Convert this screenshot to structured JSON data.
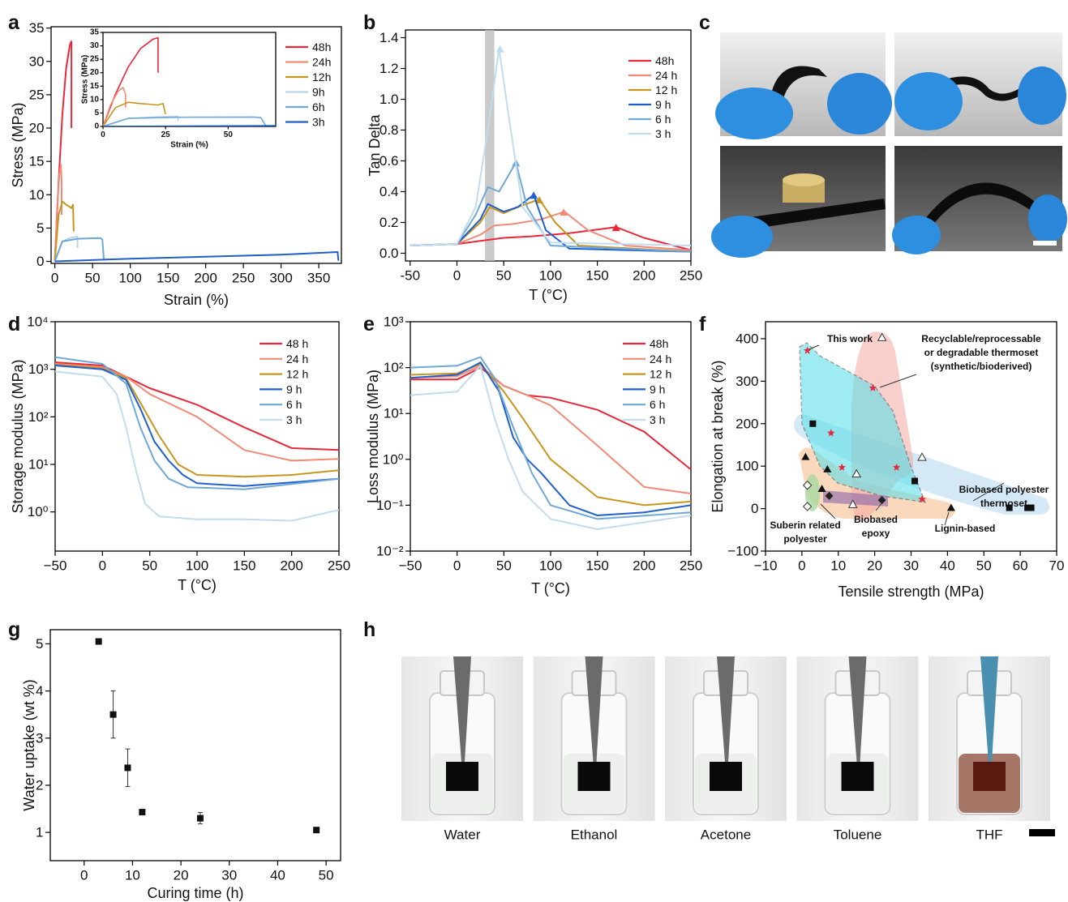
{
  "chart_data": [
    {
      "panel": "a",
      "type": "line",
      "xlabel": "Strain (%)",
      "ylabel": "Stress (MPa)",
      "xlim": [
        -5,
        380
      ],
      "ylim": [
        -0.3,
        35.2
      ],
      "xticks": [
        0,
        50,
        100,
        150,
        200,
        250,
        300,
        350
      ],
      "yticks": [
        0,
        5,
        10,
        15,
        20,
        25,
        30,
        35
      ],
      "legend": "upper right",
      "series": [
        {
          "name": "48h",
          "color": "#e8283a",
          "x": [
            0,
            5,
            10,
            15,
            20,
            22,
            22
          ],
          "values": [
            0,
            12,
            22,
            29,
            32.5,
            33,
            20
          ]
        },
        {
          "name": "24h",
          "color": "#f28a78",
          "x": [
            0,
            3,
            6,
            8,
            9,
            9
          ],
          "values": [
            0,
            8,
            13,
            14.5,
            12,
            7
          ]
        },
        {
          "name": "12h",
          "color": "#c8961e",
          "x": [
            0,
            5,
            10,
            15,
            22,
            24,
            25
          ],
          "values": [
            0,
            7,
            9,
            8.5,
            8,
            8.5,
            4.5
          ]
        },
        {
          "name": "9h",
          "color": "#b9d4e8",
          "x": [
            0,
            10,
            20,
            28,
            30,
            30
          ],
          "values": [
            0,
            3,
            3.5,
            3.7,
            3.7,
            2
          ]
        },
        {
          "name": "6h",
          "color": "#6fa8d6",
          "x": [
            0,
            10,
            30,
            60,
            63,
            65
          ],
          "values": [
            0,
            3,
            3.4,
            3.5,
            3.3,
            0.3
          ]
        },
        {
          "name": "3h",
          "color": "#1f5fc8",
          "x": [
            0,
            100,
            200,
            300,
            375,
            376
          ],
          "values": [
            0,
            0.4,
            0.7,
            1,
            1.4,
            0.1
          ]
        }
      ],
      "inset": {
        "xlabel": "Strain (%)",
        "ylabel": "Stress (MPa)",
        "xlim": [
          0,
          69
        ],
        "ylim": [
          0,
          35
        ],
        "xticks": [
          0,
          25,
          50
        ],
        "yticks": [
          0,
          5,
          10,
          15,
          20,
          25,
          30,
          35
        ]
      }
    },
    {
      "panel": "b",
      "type": "line",
      "xlabel": "T (°C)",
      "ylabel": "Tan Delta",
      "xlim": [
        -55,
        250
      ],
      "ylim": [
        -0.05,
        1.45
      ],
      "xticks": [
        -50,
        0,
        50,
        100,
        150,
        200,
        250
      ],
      "yticks": [
        {
          "value": 0,
          "label": "0.0"
        },
        0.2,
        0.4,
        0.6,
        0.8,
        {
          "value": 1,
          "label": "1.0"
        },
        1.2,
        1.4
      ],
      "legend": "upper right",
      "highlight": [
        30,
        40
      ],
      "series": [
        {
          "name": "48h",
          "color": "#e8283a",
          "x": [
            -50,
            0,
            25,
            50,
            80,
            120,
            170,
            200,
            250
          ],
          "values": [
            0.05,
            0.06,
            0.08,
            0.1,
            0.11,
            0.13,
            0.17,
            0.1,
            0.02
          ],
          "peak": [
            170,
            0.16
          ]
        },
        {
          "name": "24 h",
          "color": "#f28a78",
          "x": [
            -50,
            0,
            25,
            40,
            60,
            90,
            115,
            140,
            180,
            250
          ],
          "values": [
            0.05,
            0.06,
            0.12,
            0.18,
            0.19,
            0.22,
            0.27,
            0.15,
            0.05,
            0.02
          ],
          "peak": [
            114,
            0.26
          ]
        },
        {
          "name": "12 h",
          "color": "#c8961e",
          "x": [
            -50,
            0,
            25,
            35,
            50,
            65,
            88,
            105,
            130,
            250
          ],
          "values": [
            0.05,
            0.06,
            0.2,
            0.3,
            0.26,
            0.3,
            0.35,
            0.2,
            0.05,
            0.01
          ],
          "peak": [
            88,
            0.34
          ]
        },
        {
          "name": "9 h",
          "color": "#1f5fd0",
          "x": [
            -50,
            0,
            25,
            33,
            50,
            65,
            82,
            95,
            120,
            250
          ],
          "values": [
            0.05,
            0.06,
            0.22,
            0.32,
            0.27,
            0.3,
            0.38,
            0.15,
            0.03,
            0.01
          ],
          "peak": [
            82,
            0.37
          ]
        },
        {
          "name": "6 h",
          "color": "#6fa8d6",
          "x": [
            -50,
            0,
            20,
            33,
            45,
            63,
            75,
            100,
            250
          ],
          "values": [
            0.05,
            0.06,
            0.25,
            0.43,
            0.4,
            0.59,
            0.3,
            0.05,
            0.01
          ],
          "peak": [
            63,
            0.58
          ]
        },
        {
          "name": "3 h",
          "color": "#c2dcef",
          "x": [
            -50,
            0,
            20,
            33,
            45,
            55,
            70,
            100,
            250
          ],
          "values": [
            0.05,
            0.06,
            0.3,
            0.8,
            1.33,
            0.9,
            0.3,
            0.07,
            0.05
          ],
          "peak": [
            46,
            1.32
          ]
        }
      ]
    },
    {
      "panel": "d",
      "type": "line",
      "log_y": true,
      "xlabel": "T (°C)",
      "ylabel": "Storage modulus (MPa)",
      "xlim": [
        -50,
        250
      ],
      "ylim": [
        0.15,
        10000
      ],
      "xticks": [
        {
          "value": -50,
          "label": "−50"
        },
        0,
        50,
        100,
        150,
        200,
        250
      ],
      "yticks": [
        {
          "value": 1,
          "label": "10⁰"
        },
        {
          "value": 10,
          "label": "10¹"
        },
        {
          "value": 100,
          "label": "10²"
        },
        {
          "value": 1000,
          "label": "10³"
        },
        {
          "value": 10000,
          "label": "10⁴"
        }
      ],
      "legend": "upper right",
      "series": [
        {
          "name": "48 h",
          "color": "#e8283a",
          "x": [
            -50,
            0,
            25,
            50,
            100,
            150,
            200,
            250
          ],
          "values": [
            1400,
            1200,
            700,
            400,
            180,
            60,
            22,
            20
          ]
        },
        {
          "name": "24 h",
          "color": "#f28a78",
          "x": [
            -50,
            0,
            25,
            50,
            100,
            150,
            200,
            250
          ],
          "values": [
            1300,
            1100,
            700,
            300,
            100,
            20,
            12,
            13
          ]
        },
        {
          "name": "12 h",
          "color": "#c8961e",
          "x": [
            -50,
            0,
            25,
            40,
            60,
            80,
            100,
            150,
            200,
            250
          ],
          "values": [
            1250,
            1050,
            650,
            200,
            40,
            10,
            6,
            5.5,
            6,
            7.5
          ]
        },
        {
          "name": "9 h",
          "color": "#1f5fd0",
          "x": [
            -50,
            0,
            25,
            40,
            55,
            70,
            85,
            100,
            150,
            250
          ],
          "values": [
            1200,
            1000,
            600,
            150,
            30,
            12,
            6,
            4,
            3.5,
            5
          ]
        },
        {
          "name": "6 h",
          "color": "#6fa8d6",
          "x": [
            -50,
            0,
            25,
            40,
            55,
            70,
            90,
            150,
            250
          ],
          "values": [
            1800,
            1300,
            500,
            60,
            12,
            5,
            3.3,
            3,
            5
          ]
        },
        {
          "name": "3 h",
          "color": "#c2dcef",
          "x": [
            -50,
            0,
            15,
            25,
            35,
            45,
            60,
            100,
            150,
            200,
            250
          ],
          "values": [
            900,
            700,
            300,
            60,
            8,
            1.5,
            0.8,
            0.7,
            0.7,
            0.65,
            1.1
          ]
        }
      ]
    },
    {
      "panel": "e",
      "type": "line",
      "log_y": true,
      "xlabel": "T (°C)",
      "ylabel": "Loss modulus (MPa)",
      "xlim": [
        -50,
        250
      ],
      "ylim": [
        0.01,
        1000
      ],
      "xticks": [
        {
          "value": -50,
          "label": "−50"
        },
        0,
        50,
        100,
        150,
        200,
        250
      ],
      "yticks": [
        {
          "value": 0.01,
          "label": "10⁻²"
        },
        {
          "value": 0.1,
          "label": "10⁻¹"
        },
        {
          "value": 1,
          "label": "10⁰"
        },
        {
          "value": 10,
          "label": "10¹"
        },
        {
          "value": 100,
          "label": "10²"
        },
        {
          "value": 1000,
          "label": "10³"
        }
      ],
      "legend": "upper right",
      "series": [
        {
          "name": "48h",
          "color": "#e8283a",
          "x": [
            -50,
            0,
            25,
            50,
            75,
            100,
            150,
            200,
            250
          ],
          "values": [
            55,
            55,
            100,
            40,
            25,
            22,
            12,
            4,
            0.6
          ]
        },
        {
          "name": "24 h",
          "color": "#f28a78",
          "x": [
            -50,
            0,
            25,
            50,
            75,
            100,
            150,
            200,
            250
          ],
          "values": [
            60,
            65,
            110,
            40,
            25,
            15,
            2,
            0.25,
            0.18
          ]
        },
        {
          "name": "12 h",
          "color": "#c8961e",
          "x": [
            -50,
            0,
            25,
            50,
            70,
            80,
            100,
            150,
            200,
            250
          ],
          "values": [
            70,
            75,
            120,
            30,
            8,
            4,
            1,
            0.15,
            0.1,
            0.12
          ]
        },
        {
          "name": "9 h",
          "color": "#1f5fd0",
          "x": [
            -50,
            0,
            25,
            45,
            60,
            75,
            90,
            120,
            150,
            200,
            250
          ],
          "values": [
            60,
            70,
            130,
            30,
            3,
            1,
            0.5,
            0.1,
            0.06,
            0.07,
            0.1
          ]
        },
        {
          "name": "6 h",
          "color": "#6fa8d6",
          "x": [
            -50,
            0,
            25,
            40,
            60,
            80,
            100,
            150,
            250
          ],
          "values": [
            100,
            110,
            170,
            60,
            5,
            0.5,
            0.1,
            0.05,
            0.07
          ]
        },
        {
          "name": "3 h",
          "color": "#c2dcef",
          "x": [
            -50,
            0,
            25,
            40,
            55,
            70,
            100,
            150,
            250
          ],
          "values": [
            25,
            30,
            110,
            8,
            1,
            0.2,
            0.05,
            0.03,
            0.06
          ]
        }
      ]
    },
    {
      "panel": "f",
      "type": "scatter",
      "xlabel": "Tensile strength (MPa)",
      "ylabel": "Elongation at break (%)",
      "xlim": [
        -10,
        70
      ],
      "ylim": [
        -100,
        440
      ],
      "xticks": [
        {
          "value": -10,
          "label": "−10"
        },
        0,
        10,
        20,
        30,
        40,
        50,
        60,
        70
      ],
      "yticks": [
        {
          "value": -100,
          "label": "−100"
        },
        0,
        100,
        200,
        300,
        400
      ],
      "series": [
        {
          "name": [
            "This work"
          ],
          "marker": "star",
          "color": "#e8283a",
          "x": [
            1.5,
            19.5,
            8,
            11,
            26,
            33
          ],
          "values": [
            372,
            284,
            178,
            97,
            97,
            22
          ]
        },
        {
          "name": [
            "Recyclable/reprocessable",
            "or degradable thermoset",
            "(synthetic/bioderived)"
          ],
          "marker": "triangle-open",
          "color": "#333333",
          "x": [
            22,
            33,
            15,
            14
          ],
          "values": [
            403,
            121,
            82,
            10
          ]
        },
        {
          "name": [
            "Biobased polyester",
            "thermoset"
          ],
          "marker": "square",
          "color": "#111111",
          "x": [
            3,
            31,
            57,
            62,
            63
          ],
          "values": [
            200,
            65,
            2,
            2,
            2
          ]
        },
        {
          "name": [
            "Lignin-based"
          ],
          "marker": "triangle",
          "color": "#111111",
          "x": [
            1,
            7,
            5.5,
            41
          ],
          "values": [
            122,
            93,
            47,
            2
          ]
        },
        {
          "name": [
            "Suberin related",
            "polyester"
          ],
          "marker": "diamond-open",
          "color": "#333333",
          "x": [
            1.5,
            1.5
          ],
          "values": [
            55,
            5
          ]
        },
        {
          "name": [
            "Biobased",
            "epoxy"
          ],
          "marker": "diamond",
          "color": "#222222",
          "x": [
            7.5,
            22
          ],
          "values": [
            30,
            20
          ]
        }
      ]
    },
    {
      "panel": "g",
      "type": "scatter",
      "xlabel": "Curing time (h)",
      "ylabel": "Water uptake (wt %)",
      "xlim": [
        -7,
        53
      ],
      "ylim": [
        0.4,
        5.3
      ],
      "xticks": [
        0,
        10,
        20,
        30,
        40,
        50
      ],
      "yticks": [
        1,
        2,
        3,
        4,
        5
      ],
      "series": [
        {
          "marker": "square",
          "color": "#111111",
          "x": [
            3,
            6,
            9,
            12,
            24,
            48
          ],
          "values": [
            5.05,
            3.5,
            2.37,
            1.43,
            1.3,
            1.05
          ],
          "errors": [
            null,
            0.5,
            0.4,
            null,
            0.12,
            null
          ]
        }
      ]
    }
  ],
  "photo_panels": [
    {
      "panel": "c"
    },
    {
      "panel": "h",
      "labels": [
        "Water",
        "Ethanol",
        "Acetone",
        "Toluene",
        "THF"
      ]
    }
  ]
}
